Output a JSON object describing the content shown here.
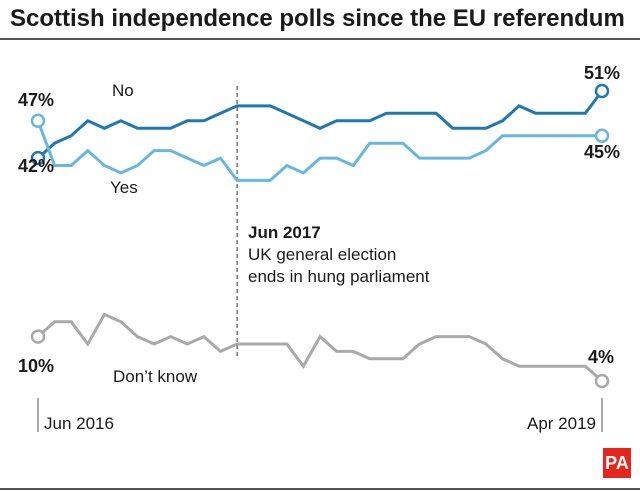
{
  "chart_data": {
    "type": "line",
    "title": "Scottish independence polls since the EU referendum",
    "x_start_label": "Jun 2016",
    "x_end_label": "Apr 2019",
    "ylim": [
      0,
      56
    ],
    "annotation": {
      "index": 12,
      "title": "Jun 2017",
      "line1": "UK general election",
      "line2": "ends in hung parliament"
    },
    "series": [
      {
        "name": "No",
        "color": "#1f78b4",
        "start_label": "42%",
        "end_label": "51%",
        "values": [
          42,
          44,
          45,
          47,
          46,
          47,
          46,
          46,
          46,
          47,
          47,
          48,
          49,
          49,
          49,
          48,
          47,
          46,
          47,
          47,
          47,
          48,
          48,
          48,
          48,
          46,
          46,
          46,
          47,
          49,
          48,
          48,
          48,
          48,
          51
        ]
      },
      {
        "name": "Yes",
        "color": "#67b7e1",
        "start_label": "47%",
        "end_label": "45%",
        "values": [
          47,
          41,
          41,
          43,
          41,
          40,
          41,
          43,
          43,
          42,
          41,
          42,
          39,
          39,
          39,
          41,
          40,
          42,
          42,
          41,
          44,
          44,
          44,
          42,
          42,
          42,
          42,
          43,
          45,
          45,
          45,
          45,
          45,
          45,
          45
        ]
      },
      {
        "name": "Don't know",
        "display_name": "Don’t know",
        "color": "#a9a9a9",
        "start_label": "10%",
        "end_label": "4%",
        "values": [
          10,
          12,
          12,
          9,
          13,
          12,
          10,
          9,
          10,
          9,
          10,
          8,
          9,
          9,
          9,
          9,
          6,
          10,
          8,
          8,
          7,
          7,
          7,
          9,
          10,
          10,
          10,
          9,
          7,
          6,
          6,
          6,
          6,
          6,
          4
        ]
      }
    ]
  },
  "brand": {
    "logo_text": "PA",
    "logo_color": "#e4261c"
  }
}
